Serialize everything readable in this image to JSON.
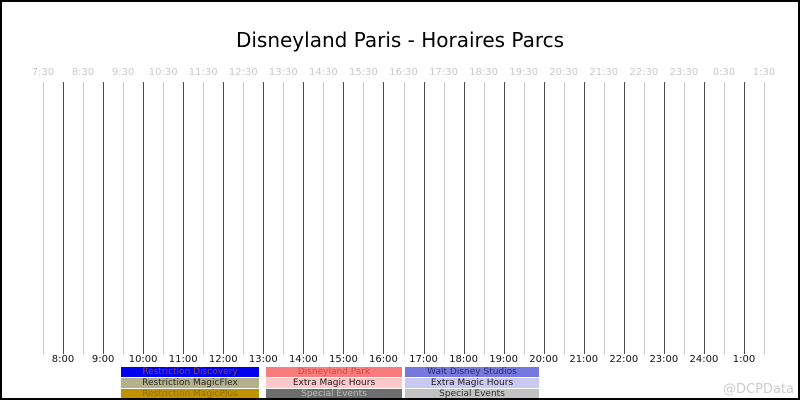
{
  "title": "Disneyland Paris - Horaires Parcs",
  "watermark": "@DCPData",
  "colors": {
    "background": "#ffffff",
    "border": "#000000",
    "title_text": "#000000",
    "hour_gridline": "#4a4a4a",
    "half_hour_gridline": "#c9c9c9",
    "top_tick_text": "#c9c9c9",
    "bottom_tick_text": "#111111",
    "watermark_text": "#cccccc"
  },
  "chart_data": {
    "type": "timeline",
    "title": "Disneyland Paris - Horaires Parcs",
    "x_axis": {
      "range": [
        "7:30",
        "1:30"
      ],
      "interval_minutes": 30,
      "top_ticks": [
        "7:30",
        "8:30",
        "9:30",
        "10:30",
        "11:30",
        "12:30",
        "13:30",
        "14:30",
        "15:30",
        "16:30",
        "17:30",
        "18:30",
        "19:30",
        "20:30",
        "21:30",
        "22:30",
        "23:30",
        "0:30",
        "1:30"
      ],
      "bottom_ticks": [
        "8:00",
        "9:00",
        "10:00",
        "11:00",
        "12:00",
        "13:00",
        "14:00",
        "15:00",
        "16:00",
        "17:00",
        "18:00",
        "19:00",
        "20:00",
        "21:00",
        "22:00",
        "23:00",
        "24:00",
        "1:00"
      ]
    },
    "grid": {
      "vertical_lines": true,
      "hour_line_style": "dark",
      "half_hour_line_style": "light"
    },
    "series": [],
    "legend": {
      "position": "bottom",
      "columns": [
        {
          "items": [
            {
              "label": "Restriction Discovery",
              "bg": "#0000ee",
              "fg": "#8b4545"
            },
            {
              "label": "Restriction MagicFlex",
              "bg": "#b3b18c",
              "fg": "#2b2b2b"
            },
            {
              "label": "Restriction MagicPlus",
              "bg": "#bf9300",
              "fg": "#8a7000"
            }
          ]
        },
        {
          "items": [
            {
              "label": "Disneyland Park",
              "bg": "#f97c7c",
              "fg": "#d34a4a"
            },
            {
              "label": "Extra Magic Hours",
              "bg": "#ffc9c9",
              "fg": "#1a1a1a"
            },
            {
              "label": "Special Events",
              "bg": "#6e6e6e",
              "fg": "#bdbdbd"
            }
          ]
        },
        {
          "items": [
            {
              "label": "Walt Disney Studios",
              "bg": "#7678dd",
              "fg": "#2c2c6e"
            },
            {
              "label": "Extra Magic Hours",
              "bg": "#c9c9f2",
              "fg": "#1a1a1a"
            },
            {
              "label": "Special Events",
              "bg": "#c2c2c2",
              "fg": "#2b2b2b"
            }
          ]
        }
      ]
    }
  }
}
